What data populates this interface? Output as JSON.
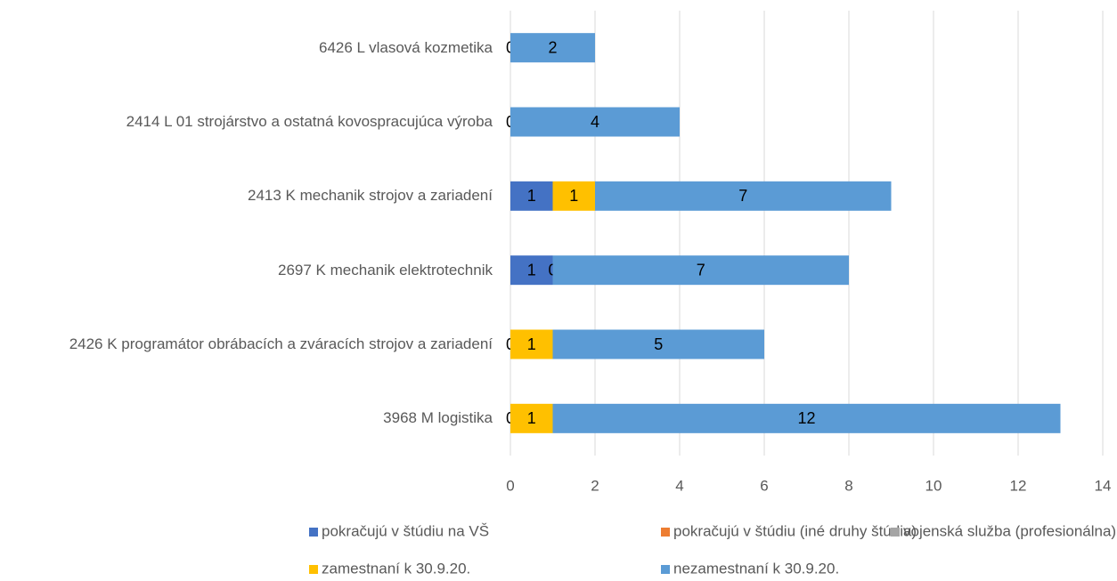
{
  "chart_data": {
    "type": "stacked_bar_horizontal",
    "categories": [
      "6426 L  vlasová kozmetika",
      "2414 L 01  strojárstvo a ostatná  kovospracujúca výroba",
      "2413 K mechanik strojov a zariadení",
      "2697 K mechanik elektrotechnik",
      "2426 K programátor obrábacích a  zváracích  strojov a zariadení",
      "3968 M logistika"
    ],
    "series": [
      {
        "name": "pokračujú v štúdiu na VŠ",
        "color": "#4472c4",
        "values": [
          null,
          null,
          1,
          1,
          0,
          0
        ]
      },
      {
        "name": "pokračujú v štúdiu (iné druhy štúdia)",
        "color": "#ed7d31",
        "values": [
          null,
          null,
          null,
          null,
          null,
          null
        ]
      },
      {
        "name": "vojenská služba (profesionálna)",
        "color": "#a5a5a5",
        "values": [
          null,
          null,
          null,
          null,
          null,
          null
        ]
      },
      {
        "name": "zamestnaní k 30.9.20.",
        "color": "#ffc000",
        "values": [
          0,
          0,
          1,
          0,
          1,
          1
        ]
      },
      {
        "name": "nezamestnaní k 30.9.20.",
        "color": "#5b9bd5",
        "values": [
          2,
          4,
          7,
          7,
          5,
          12
        ]
      }
    ],
    "xlim": [
      0,
      14
    ],
    "xticks": [
      0,
      2,
      4,
      6,
      8,
      10,
      12,
      14
    ],
    "grid": true
  }
}
